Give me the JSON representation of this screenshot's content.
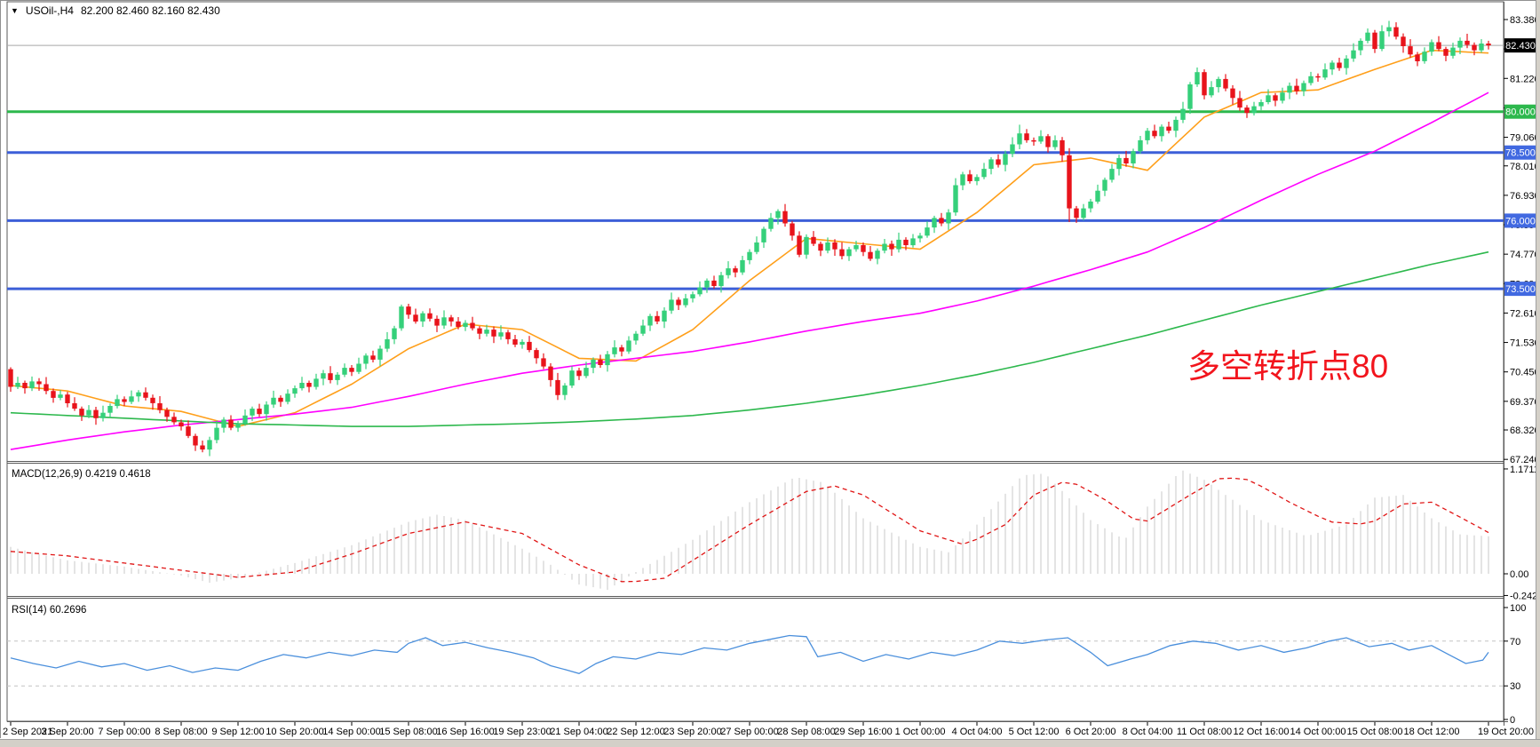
{
  "header": {
    "dropdown_glyph": "▼",
    "symbol_period": "USOil-,H4",
    "ohlc_text": "82.200 82.460 82.160 82.430"
  },
  "annotation": {
    "text": "多空转折点80",
    "color": "#f2151d"
  },
  "panels": {
    "macd_label": "MACD(12,26,9) 0.4219 0.4618",
    "rsi_label": "RSI(14) 60.2696"
  },
  "chart_data": {
    "type": "candlestick",
    "title": "USOil-,H4",
    "ylim": [
      67.2,
      84.0
    ],
    "grid": false,
    "price_axis_ticks": [
      83.38,
      82.3,
      81.22,
      80.14,
      79.06,
      78.01,
      76.93,
      75.85,
      74.77,
      73.69,
      72.61,
      71.53,
      70.45,
      69.37,
      68.32,
      67.24
    ],
    "x_labels": [
      "2 Sep 2021",
      "3 Sep 20:00",
      "7 Sep 00:00",
      "8 Sep 08:00",
      "9 Sep 12:00",
      "10 Sep 20:00",
      "14 Sep 00:00",
      "15 Sep 08:00",
      "16 Sep 16:00",
      "19 Sep 23:00",
      "21 Sep 04:00",
      "22 Sep 12:00",
      "23 Sep 20:00",
      "27 Sep 00:00",
      "28 Sep 08:00",
      "29 Sep 16:00",
      "1 Oct 00:00",
      "4 Oct 04:00",
      "5 Oct 12:00",
      "6 Oct 20:00",
      "8 Oct 04:00",
      "11 Oct 08:00",
      "12 Oct 16:00",
      "14 Oct 00:00",
      "15 Oct 08:00",
      "18 Oct 12:00",
      "19 Oct 20:00"
    ],
    "colors": {
      "up": "#35d07a",
      "down": "#e8131b",
      "ma_fast": "#ff9f1a",
      "ma_mid": "#ff00ff",
      "ma_slow": "#2db84d",
      "hline_blue": "#3c5fd8",
      "hline_green": "#2db84d",
      "badge_blue": "#4169e1",
      "badge_green": "#2db84d",
      "badge_black": "#000000",
      "current_line": "#a8a8a8",
      "hist": "#c9c9c9",
      "signal": "#e01515",
      "rsi": "#4a8fdc",
      "rsi_level": "#c4c4c4",
      "frame": "#5a5a5a",
      "text": "#000000"
    },
    "candles": {
      "first_open": 70.55,
      "closes": [
        69.9,
        70.05,
        69.85,
        70.1,
        70.0,
        69.75,
        69.5,
        69.62,
        69.3,
        69.1,
        68.85,
        69.05,
        68.75,
        68.95,
        69.2,
        69.45,
        69.35,
        69.55,
        69.7,
        69.5,
        69.3,
        69.05,
        68.8,
        68.6,
        68.45,
        68.1,
        67.75,
        67.6,
        67.95,
        68.4,
        68.7,
        68.4,
        68.55,
        68.85,
        69.1,
        68.9,
        69.25,
        69.5,
        69.35,
        69.65,
        69.85,
        70.05,
        69.9,
        70.2,
        70.4,
        70.15,
        70.35,
        70.6,
        70.45,
        70.75,
        71.05,
        70.9,
        71.3,
        71.65,
        72.05,
        72.85,
        72.55,
        72.3,
        72.6,
        72.4,
        72.15,
        72.45,
        72.3,
        72.1,
        72.25,
        72.05,
        71.85,
        72.0,
        71.75,
        71.9,
        71.65,
        71.45,
        71.55,
        71.25,
        70.95,
        70.65,
        70.15,
        69.6,
        69.95,
        70.5,
        70.3,
        70.6,
        70.9,
        70.7,
        71.1,
        71.35,
        71.2,
        71.6,
        71.85,
        72.15,
        72.5,
        72.3,
        72.7,
        73.1,
        72.9,
        73.15,
        73.3,
        73.55,
        73.8,
        73.6,
        74.0,
        74.25,
        74.1,
        74.55,
        74.85,
        75.2,
        75.7,
        76.1,
        76.35,
        75.9,
        75.45,
        74.75,
        75.4,
        75.15,
        74.9,
        75.2,
        74.95,
        74.7,
        74.95,
        75.1,
        74.85,
        74.6,
        74.9,
        75.15,
        74.95,
        75.3,
        75.1,
        75.35,
        75.45,
        75.75,
        76.1,
        75.9,
        76.3,
        77.3,
        77.7,
        77.45,
        77.6,
        77.9,
        78.25,
        78.05,
        78.45,
        78.8,
        79.2,
        78.95,
        78.9,
        79.1,
        78.7,
        78.95,
        78.4,
        76.45,
        76.1,
        76.45,
        76.7,
        77.1,
        77.5,
        77.9,
        78.3,
        78.1,
        78.55,
        78.95,
        79.3,
        79.1,
        79.45,
        79.3,
        79.7,
        80.1,
        81.0,
        81.45,
        80.6,
        80.9,
        81.2,
        80.85,
        80.5,
        80.15,
        79.95,
        80.2,
        80.35,
        80.6,
        80.4,
        80.7,
        80.95,
        80.75,
        81.05,
        81.3,
        81.25,
        81.55,
        81.8,
        81.6,
        81.95,
        82.25,
        82.6,
        82.9,
        82.3,
        82.95,
        83.1,
        82.75,
        82.4,
        82.1,
        81.85,
        82.2,
        82.55,
        82.3,
        82.05,
        82.35,
        82.6,
        82.45,
        82.25,
        82.5,
        82.43
      ],
      "wick_up_cycle": [
        0.1,
        0.22,
        0.08,
        0.18,
        0.12,
        0.26,
        0.09,
        0.16
      ],
      "wick_down_cycle": [
        0.15,
        0.08,
        0.2,
        0.1,
        0.24,
        0.12,
        0.18,
        0.09
      ],
      "specials": {
        "0": {
          "h": 70.62,
          "l": 69.72
        },
        "27": {
          "l": 67.5
        },
        "55": {
          "h": 72.92
        },
        "77": {
          "l": 69.42
        },
        "108": {
          "h": 76.42
        },
        "142": {
          "h": 79.52
        },
        "149": {
          "l": 75.95
        },
        "167": {
          "h": 81.62
        },
        "191": {
          "h": 83.05
        },
        "194": {
          "h": 83.33
        }
      }
    },
    "moving_averages": [
      {
        "name": "ma-fast-orange",
        "color_key": "ma_fast",
        "anchors": [
          69.95,
          69.75,
          69.2,
          69.0,
          68.45,
          68.95,
          70.0,
          71.3,
          72.2,
          72.0,
          70.95,
          70.85,
          72.0,
          73.8,
          75.35,
          75.15,
          74.95,
          76.3,
          78.05,
          78.3,
          77.85,
          79.8,
          80.7,
          80.8,
          81.55,
          82.25,
          82.15
        ]
      },
      {
        "name": "ma-mid-magenta",
        "color_key": "ma_mid",
        "anchors": [
          67.6,
          67.95,
          68.25,
          68.5,
          68.7,
          68.9,
          69.15,
          69.55,
          70.0,
          70.4,
          70.7,
          70.95,
          71.2,
          71.55,
          71.95,
          72.3,
          72.6,
          73.05,
          73.6,
          74.2,
          74.85,
          75.75,
          76.75,
          77.7,
          78.55,
          79.6,
          80.7
        ]
      },
      {
        "name": "ma-slow-green",
        "color_key": "ma_slow",
        "anchors": [
          68.95,
          68.85,
          68.75,
          68.65,
          68.55,
          68.5,
          68.45,
          68.45,
          68.5,
          68.55,
          68.62,
          68.72,
          68.85,
          69.05,
          69.3,
          69.6,
          69.95,
          70.35,
          70.8,
          71.3,
          71.8,
          72.35,
          72.9,
          73.4,
          73.9,
          74.4,
          74.85
        ]
      }
    ],
    "h_lines": [
      {
        "price": 80.0,
        "label": "80.000",
        "style": "green",
        "width": 3
      },
      {
        "price": 78.5,
        "label": "78.500",
        "style": "blue",
        "width": 3
      },
      {
        "price": 76.0,
        "label": "76.000",
        "style": "blue",
        "width": 3
      },
      {
        "price": 73.5,
        "label": "73.500",
        "style": "blue",
        "width": 3
      }
    ],
    "current_price": {
      "price": 82.43,
      "label": "82.430"
    },
    "macd": {
      "axis_labels": [
        {
          "v": 1.1711,
          "t": "1.1711"
        },
        {
          "v": 0,
          "t": "0.00"
        },
        {
          "v": -0.2424,
          "t": "-0.2424"
        }
      ],
      "histogram_anchors": [
        [
          0,
          0.3
        ],
        [
          0.5,
          0.22
        ],
        [
          1,
          0.15
        ],
        [
          2,
          0.08
        ],
        [
          3,
          -0.02
        ],
        [
          3.5,
          -0.1
        ],
        [
          4,
          -0.05
        ],
        [
          5,
          0.12
        ],
        [
          6,
          0.32
        ],
        [
          7,
          0.58
        ],
        [
          7.5,
          0.66
        ],
        [
          8,
          0.6
        ],
        [
          9,
          0.28
        ],
        [
          9.5,
          0.1
        ],
        [
          10,
          -0.12
        ],
        [
          10.5,
          -0.18
        ],
        [
          11,
          0.02
        ],
        [
          12,
          0.38
        ],
        [
          13,
          0.8
        ],
        [
          13.8,
          1.08
        ],
        [
          14.3,
          1.02
        ],
        [
          15,
          0.62
        ],
        [
          16,
          0.3
        ],
        [
          16.5,
          0.24
        ],
        [
          17,
          0.55
        ],
        [
          17.8,
          1.1
        ],
        [
          18.2,
          1.12
        ],
        [
          19,
          0.6
        ],
        [
          19.6,
          0.38
        ],
        [
          20,
          0.75
        ],
        [
          20.6,
          1.16
        ],
        [
          21,
          1.05
        ],
        [
          22,
          0.6
        ],
        [
          22.8,
          0.42
        ],
        [
          23.5,
          0.55
        ],
        [
          24,
          0.85
        ],
        [
          24.5,
          0.88
        ],
        [
          25,
          0.62
        ],
        [
          25.5,
          0.44
        ],
        [
          26,
          0.42
        ]
      ],
      "signal_anchors": [
        [
          0,
          0.25
        ],
        [
          1,
          0.2
        ],
        [
          2,
          0.12
        ],
        [
          3,
          0.04
        ],
        [
          4,
          -0.04
        ],
        [
          5,
          0.02
        ],
        [
          6,
          0.22
        ],
        [
          7,
          0.45
        ],
        [
          8,
          0.58
        ],
        [
          9,
          0.45
        ],
        [
          10,
          0.1
        ],
        [
          10.8,
          -0.1
        ],
        [
          11.5,
          -0.05
        ],
        [
          12,
          0.15
        ],
        [
          13,
          0.55
        ],
        [
          14,
          0.92
        ],
        [
          14.5,
          0.98
        ],
        [
          15,
          0.88
        ],
        [
          16,
          0.48
        ],
        [
          16.8,
          0.32
        ],
        [
          17.5,
          0.55
        ],
        [
          18,
          0.88
        ],
        [
          18.6,
          1.05
        ],
        [
          19.2,
          0.85
        ],
        [
          19.9,
          0.55
        ],
        [
          20.8,
          0.9
        ],
        [
          21.3,
          1.08
        ],
        [
          21.8,
          1.05
        ],
        [
          22.5,
          0.8
        ],
        [
          23.2,
          0.58
        ],
        [
          23.9,
          0.55
        ],
        [
          24.5,
          0.78
        ],
        [
          25,
          0.8
        ],
        [
          25.6,
          0.6
        ],
        [
          26,
          0.46
        ]
      ]
    },
    "rsi": {
      "axis_labels": [
        {
          "v": 100,
          "t": "100"
        },
        {
          "v": 70,
          "t": "70"
        },
        {
          "v": 30,
          "t": "30"
        },
        {
          "v": 0,
          "t": "0"
        }
      ],
      "levels": [
        70,
        30
      ],
      "points": [
        [
          0,
          55
        ],
        [
          0.4,
          50
        ],
        [
          0.8,
          46
        ],
        [
          1.2,
          52
        ],
        [
          1.6,
          47
        ],
        [
          2,
          50
        ],
        [
          2.4,
          44
        ],
        [
          2.8,
          48
        ],
        [
          3.2,
          42
        ],
        [
          3.6,
          46
        ],
        [
          4,
          44
        ],
        [
          4.4,
          52
        ],
        [
          4.8,
          58
        ],
        [
          5.2,
          55
        ],
        [
          5.6,
          60
        ],
        [
          6,
          57
        ],
        [
          6.4,
          62
        ],
        [
          6.8,
          60
        ],
        [
          7,
          68
        ],
        [
          7.3,
          73
        ],
        [
          7.6,
          66
        ],
        [
          8,
          69
        ],
        [
          8.4,
          64
        ],
        [
          8.8,
          60
        ],
        [
          9.2,
          55
        ],
        [
          9.5,
          48
        ],
        [
          9.8,
          44
        ],
        [
          10,
          41
        ],
        [
          10.3,
          50
        ],
        [
          10.6,
          56
        ],
        [
          11,
          54
        ],
        [
          11.4,
          60
        ],
        [
          11.8,
          58
        ],
        [
          12.2,
          64
        ],
        [
          12.6,
          62
        ],
        [
          13,
          68
        ],
        [
          13.4,
          72
        ],
        [
          13.7,
          75
        ],
        [
          14,
          74
        ],
        [
          14.2,
          56
        ],
        [
          14.6,
          60
        ],
        [
          15,
          52
        ],
        [
          15.4,
          58
        ],
        [
          15.8,
          54
        ],
        [
          16.2,
          60
        ],
        [
          16.6,
          57
        ],
        [
          17,
          62
        ],
        [
          17.4,
          70
        ],
        [
          17.8,
          68
        ],
        [
          18.2,
          71
        ],
        [
          18.6,
          73
        ],
        [
          19,
          60
        ],
        [
          19.3,
          48
        ],
        [
          19.7,
          54
        ],
        [
          20,
          58
        ],
        [
          20.4,
          66
        ],
        [
          20.8,
          70
        ],
        [
          21.2,
          68
        ],
        [
          21.6,
          62
        ],
        [
          22,
          66
        ],
        [
          22.4,
          60
        ],
        [
          22.8,
          64
        ],
        [
          23.2,
          70
        ],
        [
          23.5,
          73
        ],
        [
          23.9,
          65
        ],
        [
          24.3,
          68
        ],
        [
          24.6,
          62
        ],
        [
          25,
          66
        ],
        [
          25.3,
          58
        ],
        [
          25.6,
          50
        ],
        [
          25.9,
          53
        ],
        [
          26,
          60
        ]
      ]
    }
  }
}
